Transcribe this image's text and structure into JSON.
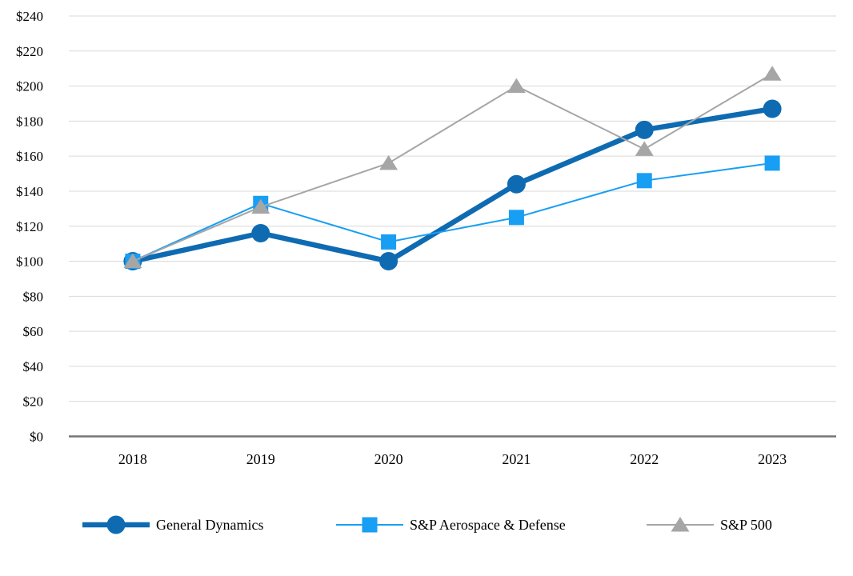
{
  "chart_data": {
    "type": "line",
    "title": "",
    "xlabel": "",
    "ylabel": "",
    "categories": [
      "2018",
      "2019",
      "2020",
      "2021",
      "2022",
      "2023"
    ],
    "series": [
      {
        "name": "General Dynamics",
        "values": [
          100,
          116,
          100,
          144,
          175,
          187
        ],
        "color": "#0E6BB2",
        "marker": "circle",
        "line_width": 6.5
      },
      {
        "name": "S&P Aerospace & Defense",
        "values": [
          100,
          133,
          111,
          125,
          146,
          156
        ],
        "color": "#189EF3",
        "marker": "square",
        "line_width": 2
      },
      {
        "name": "S&P 500",
        "values": [
          100,
          131,
          156,
          200,
          164,
          207
        ],
        "color": "#A6A6A6",
        "marker": "triangle",
        "line_width": 2
      }
    ],
    "ylim": [
      0,
      240
    ],
    "y_tick_step": 20,
    "y_tick_labels": [
      "$0",
      "$20",
      "$40",
      "$60",
      "$80",
      "$100",
      "$120",
      "$140",
      "$160",
      "$180",
      "$200",
      "$220",
      "$240"
    ],
    "grid": true,
    "legend_position": "bottom",
    "colors": {
      "gridline": "#D9D9D9",
      "axis_line": "#767676",
      "text": "#000000",
      "background": "#FFFFFF"
    }
  }
}
